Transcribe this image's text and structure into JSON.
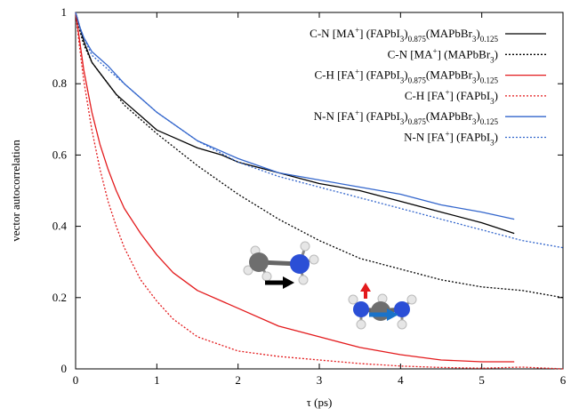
{
  "chart_data": {
    "type": "line",
    "xlabel": "τ (ps)",
    "ylabel": "vector autocorrelation",
    "xlim": [
      0,
      6
    ],
    "ylim": [
      0,
      1
    ],
    "xticks": [
      "0",
      "1",
      "2",
      "3",
      "4",
      "5",
      "6"
    ],
    "yticks": [
      "0",
      "0.2",
      "0.4",
      "0.6",
      "0.8",
      "1"
    ],
    "grid": false,
    "legend_position": "top-right",
    "series": [
      {
        "name": "C-N [MA+] (FAPbI3)0.875(MAPbBr3)0.125",
        "legend_parts": [
          [
            "t",
            "C-N [MA"
          ],
          [
            "sup",
            "+"
          ],
          [
            "t",
            "] (FAPbI"
          ],
          [
            "sub",
            "3"
          ],
          [
            "t",
            ")"
          ],
          [
            "sub",
            "0.875"
          ],
          [
            "t",
            "(MAPbBr"
          ],
          [
            "sub",
            "3"
          ],
          [
            "t",
            ")"
          ],
          [
            "sub",
            "0.125"
          ]
        ],
        "color": "#000000",
        "dash": "solid",
        "x": [
          0,
          0.05,
          0.1,
          0.2,
          0.3,
          0.4,
          0.5,
          0.6,
          0.8,
          1.0,
          1.2,
          1.5,
          1.8,
          2.0,
          2.5,
          3.0,
          3.5,
          4.0,
          4.5,
          5.0,
          5.4
        ],
        "y": [
          1.0,
          0.96,
          0.92,
          0.86,
          0.83,
          0.8,
          0.77,
          0.75,
          0.71,
          0.67,
          0.65,
          0.62,
          0.6,
          0.58,
          0.55,
          0.52,
          0.5,
          0.47,
          0.44,
          0.41,
          0.38
        ]
      },
      {
        "name": "C-N [MA+] (MAPbBr3)",
        "legend_parts": [
          [
            "t",
            "C-N [MA"
          ],
          [
            "sup",
            "+"
          ],
          [
            "t",
            "] (MAPbBr"
          ],
          [
            "sub",
            "3"
          ],
          [
            "t",
            ")"
          ]
        ],
        "color": "#000000",
        "dash": "dotted",
        "x": [
          0,
          0.05,
          0.1,
          0.2,
          0.3,
          0.4,
          0.5,
          0.6,
          0.8,
          1.0,
          1.5,
          2.0,
          2.5,
          3.0,
          3.5,
          4.0,
          4.5,
          5.0,
          5.5,
          6.0
        ],
        "y": [
          1.0,
          0.95,
          0.91,
          0.86,
          0.83,
          0.8,
          0.77,
          0.74,
          0.7,
          0.66,
          0.57,
          0.49,
          0.42,
          0.36,
          0.31,
          0.28,
          0.25,
          0.23,
          0.22,
          0.2
        ]
      },
      {
        "name": "C-H [FA+] (FAPbI3)0.875(MAPbBr3)0.125",
        "legend_parts": [
          [
            "t",
            "C-H [FA"
          ],
          [
            "sup",
            "+"
          ],
          [
            "t",
            "] (FAPbI"
          ],
          [
            "sub",
            "3"
          ],
          [
            "t",
            ")"
          ],
          [
            "sub",
            "0.875"
          ],
          [
            "t",
            "(MAPbBr"
          ],
          [
            "sub",
            "3"
          ],
          [
            "t",
            ")"
          ],
          [
            "sub",
            "0.125"
          ]
        ],
        "color": "#e31a1c",
        "dash": "solid",
        "x": [
          0,
          0.05,
          0.1,
          0.2,
          0.3,
          0.4,
          0.5,
          0.6,
          0.8,
          1.0,
          1.2,
          1.5,
          2.0,
          2.5,
          3.0,
          3.5,
          4.0,
          4.5,
          5.0,
          5.4
        ],
        "y": [
          1.0,
          0.92,
          0.84,
          0.72,
          0.63,
          0.56,
          0.5,
          0.45,
          0.38,
          0.32,
          0.27,
          0.22,
          0.17,
          0.12,
          0.09,
          0.06,
          0.04,
          0.025,
          0.02,
          0.02
        ]
      },
      {
        "name": "C-H [FA+] (FAPbI3)",
        "legend_parts": [
          [
            "t",
            "C-H [FA"
          ],
          [
            "sup",
            "+"
          ],
          [
            "t",
            "] (FAPbI"
          ],
          [
            "sub",
            "3"
          ],
          [
            "t",
            ")"
          ]
        ],
        "color": "#e31a1c",
        "dash": "dotted",
        "x": [
          0,
          0.05,
          0.1,
          0.2,
          0.3,
          0.4,
          0.5,
          0.6,
          0.8,
          1.0,
          1.2,
          1.5,
          2.0,
          2.5,
          3.0,
          3.5,
          4.0,
          4.5,
          5.0,
          5.5,
          6.0
        ],
        "y": [
          1.0,
          0.9,
          0.81,
          0.67,
          0.56,
          0.47,
          0.4,
          0.34,
          0.25,
          0.19,
          0.14,
          0.09,
          0.05,
          0.035,
          0.025,
          0.015,
          0.008,
          0.004,
          0.002,
          0.005,
          0.0
        ]
      },
      {
        "name": "N-N [FA+] (FAPbI3)0.875(MAPbBr3)0.125",
        "legend_parts": [
          [
            "t",
            "N-N [FA"
          ],
          [
            "sup",
            "+"
          ],
          [
            "t",
            "] (FAPbI"
          ],
          [
            "sub",
            "3"
          ],
          [
            "t",
            ")"
          ],
          [
            "sub",
            "0.875"
          ],
          [
            "t",
            "(MAPbBr"
          ],
          [
            "sub",
            "3"
          ],
          [
            "t",
            ")"
          ],
          [
            "sub",
            "0.125"
          ]
        ],
        "color": "#3366cc",
        "dash": "solid",
        "x": [
          0,
          0.05,
          0.1,
          0.2,
          0.3,
          0.4,
          0.6,
          0.8,
          1.0,
          1.5,
          2.0,
          2.5,
          3.0,
          3.5,
          4.0,
          4.5,
          5.0,
          5.4
        ],
        "y": [
          1.0,
          0.96,
          0.93,
          0.89,
          0.87,
          0.85,
          0.8,
          0.76,
          0.72,
          0.64,
          0.59,
          0.55,
          0.53,
          0.51,
          0.49,
          0.46,
          0.44,
          0.42
        ]
      },
      {
        "name": "N-N [FA+] (FAPbI3)",
        "legend_parts": [
          [
            "t",
            "N-N [FA"
          ],
          [
            "sup",
            "+"
          ],
          [
            "t",
            "] (FAPbI"
          ],
          [
            "sub",
            "3"
          ],
          [
            "t",
            ")"
          ]
        ],
        "color": "#3366cc",
        "dash": "dotted",
        "x": [
          0,
          0.05,
          0.1,
          0.2,
          0.3,
          0.5,
          0.7,
          1.0,
          1.5,
          2.0,
          2.5,
          3.0,
          3.5,
          4.0,
          4.5,
          5.0,
          5.5,
          6.0
        ],
        "y": [
          1.0,
          0.96,
          0.93,
          0.88,
          0.86,
          0.82,
          0.78,
          0.72,
          0.64,
          0.58,
          0.54,
          0.51,
          0.48,
          0.45,
          0.42,
          0.39,
          0.36,
          0.34
        ]
      }
    ]
  },
  "insets": [
    {
      "name": "methylammonium-molecule",
      "arrow_color": "#000000"
    },
    {
      "name": "formamidinium-molecule",
      "arrow_colors": [
        "#e31a1c",
        "#1a73c9"
      ]
    }
  ]
}
